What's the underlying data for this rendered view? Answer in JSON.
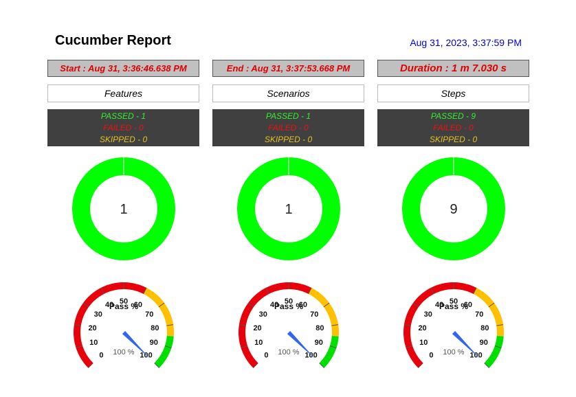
{
  "report": {
    "title": "Cucumber Report",
    "generated": "Aug 31, 2023, 3:37:59 PM",
    "start": "Start : Aug 31, 3:36:46.638 PM",
    "end": "End : Aug 31, 3:37:53.668 PM",
    "duration": "Duration : 1 m 7.030 s"
  },
  "columns": [
    {
      "header": "Features",
      "passed": "PASSED - 1",
      "failed": "FAILED - 0",
      "skipped": "SKIPPED - 0",
      "total": "1"
    },
    {
      "header": "Scenarios",
      "passed": "PASSED - 1",
      "failed": "FAILED - 0",
      "skipped": "SKIPPED - 0",
      "total": "1"
    },
    {
      "header": "Steps",
      "passed": "PASSED - 9",
      "failed": "FAILED - 0",
      "skipped": "SKIPPED - 0",
      "total": "9"
    }
  ],
  "chart_data": [
    {
      "type": "pie",
      "variant": "doughnut",
      "center_label": "1",
      "slices": [
        {
          "label": "passed",
          "value": 1,
          "color": "#00ff00"
        }
      ]
    },
    {
      "type": "pie",
      "variant": "doughnut",
      "center_label": "1",
      "slices": [
        {
          "label": "passed",
          "value": 1,
          "color": "#00ff00"
        }
      ]
    },
    {
      "type": "pie",
      "variant": "doughnut",
      "center_label": "9",
      "slices": [
        {
          "label": "passed",
          "value": 9,
          "color": "#00ff00"
        }
      ]
    },
    {
      "type": "gauge",
      "title": "Pass %",
      "value": 100,
      "value_label": "100 %",
      "range": [
        0,
        100
      ],
      "ticks": [
        "0",
        "10",
        "20",
        "30",
        "40",
        "50",
        "60",
        "70",
        "80",
        "90",
        "100"
      ],
      "bands": [
        {
          "from": 0,
          "to": 60,
          "color": "#e8000b"
        },
        {
          "from": 60,
          "to": 85,
          "color": "#ffc000"
        },
        {
          "from": 85,
          "to": 100,
          "color": "#00e000"
        }
      ]
    },
    {
      "type": "gauge",
      "title": "Pass %",
      "value": 100,
      "value_label": "100 %",
      "range": [
        0,
        100
      ],
      "ticks": [
        "0",
        "10",
        "20",
        "30",
        "40",
        "50",
        "60",
        "70",
        "80",
        "90",
        "100"
      ],
      "bands": [
        {
          "from": 0,
          "to": 60,
          "color": "#e8000b"
        },
        {
          "from": 60,
          "to": 85,
          "color": "#ffc000"
        },
        {
          "from": 85,
          "to": 100,
          "color": "#00e000"
        }
      ]
    },
    {
      "type": "gauge",
      "title": "Pass %",
      "value": 100,
      "value_label": "100 %",
      "range": [
        0,
        100
      ],
      "ticks": [
        "0",
        "10",
        "20",
        "30",
        "40",
        "50",
        "60",
        "70",
        "80",
        "90",
        "100"
      ],
      "bands": [
        {
          "from": 0,
          "to": 60,
          "color": "#e8000b"
        },
        {
          "from": 60,
          "to": 85,
          "color": "#ffc000"
        },
        {
          "from": 85,
          "to": 100,
          "color": "#00e000"
        }
      ]
    }
  ]
}
